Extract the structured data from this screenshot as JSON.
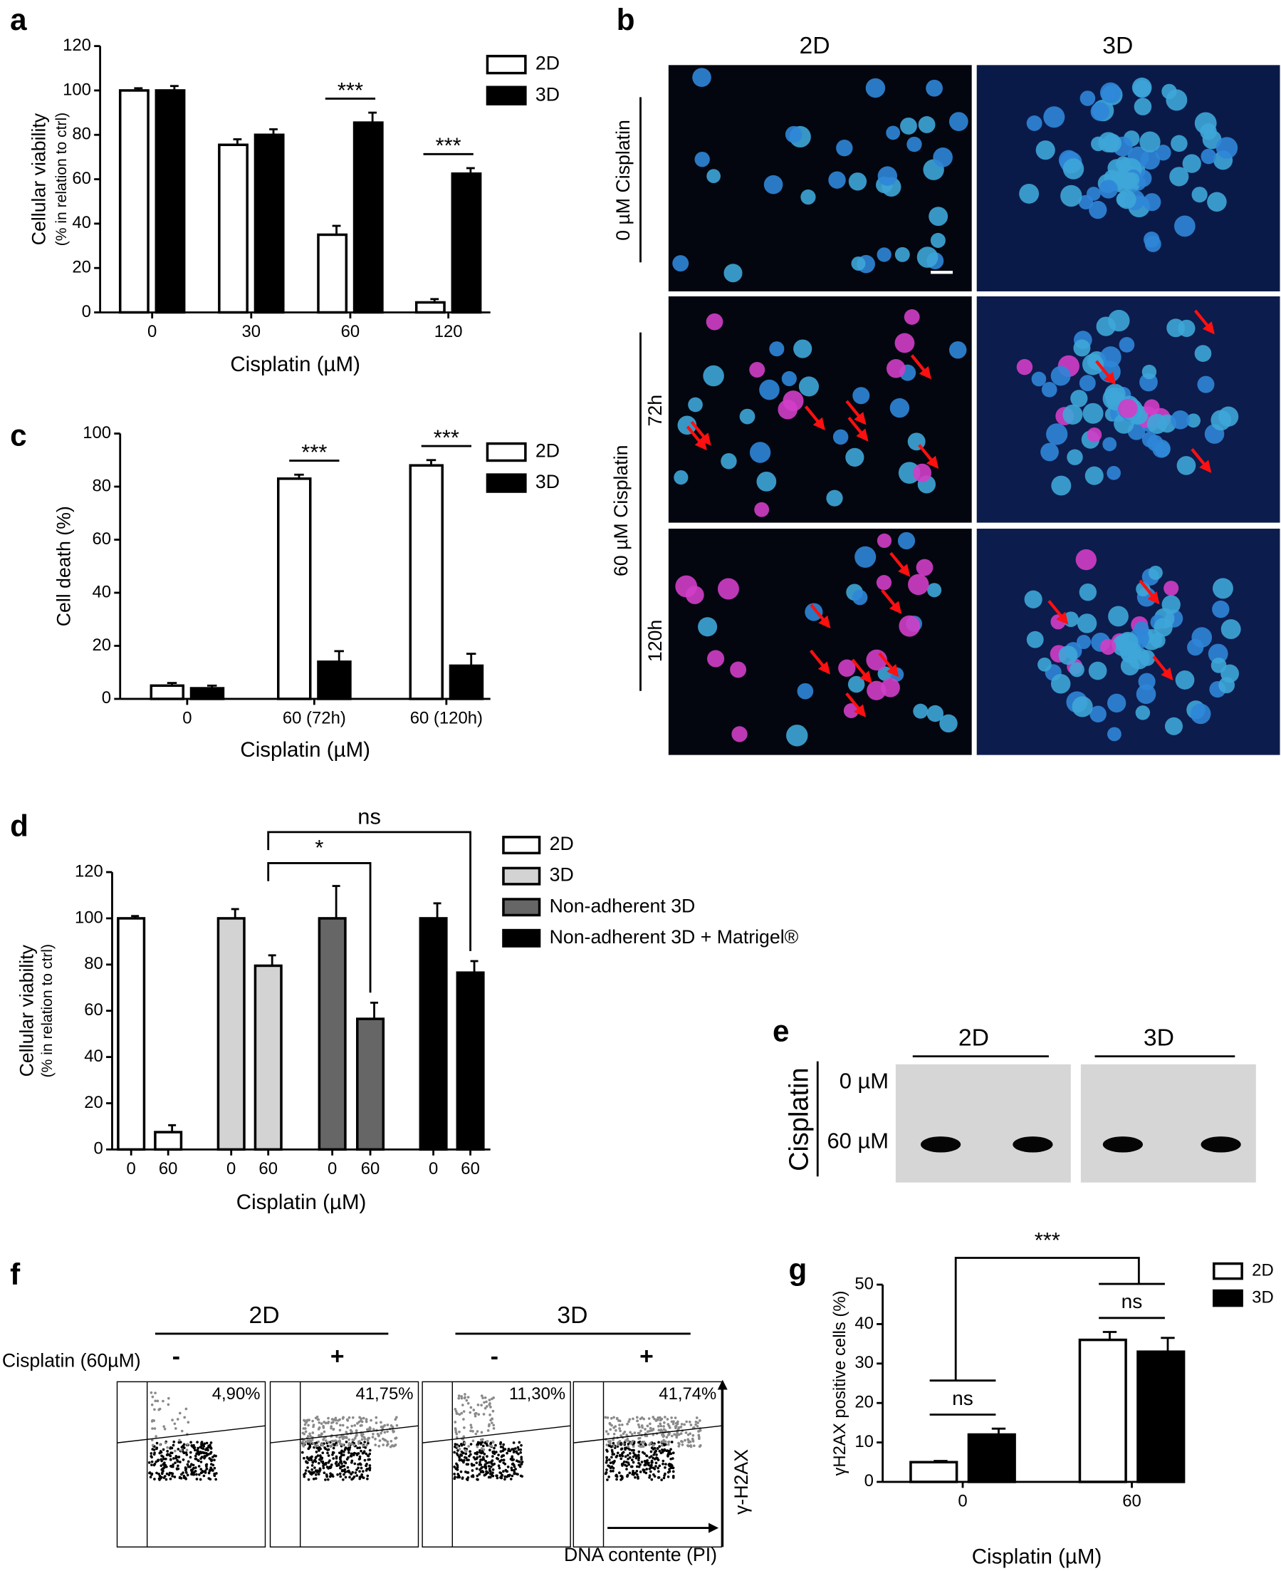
{
  "panel_labels": [
    "a",
    "b",
    "c",
    "d",
    "e",
    "f",
    "g"
  ],
  "chart_data": [
    {
      "type": "bar",
      "ylabel": "Cellular viability",
      "ylabel_note": "(% in relation to ctrl)",
      "xlabel": "Cisplatin (µM)",
      "categories": [
        "0",
        "30",
        "60",
        "120"
      ],
      "series": [
        {
          "name": "2D",
          "color": "#ffffff",
          "values": [
            100,
            75.5,
            35,
            4.5
          ],
          "errors": [
            1,
            2.5,
            4,
            1.5
          ]
        },
        {
          "name": "3D",
          "color": "#000000",
          "values": [
            100,
            80,
            85.5,
            62.5
          ],
          "errors": [
            2,
            2.5,
            4.5,
            2.5
          ]
        }
      ],
      "significance": [
        null,
        null,
        "***",
        "***"
      ],
      "ylim": [
        0,
        120
      ],
      "yticks": [
        0,
        20,
        40,
        60,
        80,
        100,
        120
      ]
    },
    {
      "type": "bar",
      "ylabel": "Cell death (%)",
      "xlabel": "Cisplatin (µM)",
      "categories": [
        "0",
        "60 (72h)",
        "60 (120h)"
      ],
      "series": [
        {
          "name": "2D",
          "color": "#ffffff",
          "values": [
            5,
            83,
            88
          ],
          "errors": [
            1,
            1.5,
            2
          ]
        },
        {
          "name": "3D",
          "color": "#000000",
          "values": [
            4,
            14,
            12.5
          ],
          "errors": [
            1,
            4,
            4.5
          ]
        }
      ],
      "significance": [
        null,
        "***",
        "***"
      ],
      "ylim": [
        0,
        100
      ],
      "yticks": [
        0,
        20,
        40,
        60,
        80,
        100
      ]
    },
    {
      "type": "bar",
      "ylabel": "Cellular viability",
      "ylabel_note": "(% in relation to ctrl)",
      "xlabel": "Cisplatin (µM)",
      "categories": [
        "0",
        "60",
        "0",
        "60",
        "0",
        "60",
        "0",
        "60"
      ],
      "series": [
        {
          "name": "2D",
          "color": "#ffffff",
          "values": [
            100,
            7.5,
            null,
            null,
            null,
            null,
            null,
            null
          ],
          "errors": [
            1,
            3,
            null,
            null,
            null,
            null,
            null,
            null
          ]
        },
        {
          "name": "3D",
          "color": "#d3d3d3",
          "values": [
            null,
            null,
            100,
            79.5,
            null,
            null,
            null,
            null
          ],
          "errors": [
            null,
            null,
            4,
            4.5,
            null,
            null,
            null,
            null
          ]
        },
        {
          "name": "Non-adherent 3D",
          "color": "#666666",
          "values": [
            null,
            null,
            null,
            null,
            100,
            56.5,
            null,
            null
          ],
          "errors": [
            null,
            null,
            null,
            null,
            14,
            7,
            null,
            null
          ]
        },
        {
          "name": "Non-adherent 3D + Matrigel®",
          "color": "#000000",
          "values": [
            null,
            null,
            null,
            null,
            null,
            null,
            100,
            76.5
          ],
          "errors": [
            null,
            null,
            null,
            null,
            null,
            null,
            6.5,
            5
          ]
        }
      ],
      "comparisons": [
        {
          "label": "*",
          "from": 3,
          "to": 5
        },
        {
          "label": "ns",
          "from": 3,
          "to": 7
        }
      ],
      "ylim": [
        0,
        120
      ],
      "yticks": [
        0,
        20,
        40,
        60,
        80,
        100,
        120
      ]
    },
    {
      "type": "bar",
      "ylabel": "γH2AX positive cells (%)",
      "xlabel": "Cisplatin (µM)",
      "categories": [
        "0",
        "60"
      ],
      "series": [
        {
          "name": "2D",
          "color": "#ffffff",
          "values": [
            5,
            36
          ],
          "errors": [
            0.3,
            2
          ]
        },
        {
          "name": "3D",
          "color": "#000000",
          "values": [
            12,
            33
          ],
          "errors": [
            1.5,
            3.5
          ]
        }
      ],
      "comparisons": [
        {
          "label": "ns",
          "from": 0,
          "to": 0
        },
        {
          "label": "ns",
          "from": 1,
          "to": 1
        },
        {
          "label": "***",
          "from": 0,
          "to": 1
        }
      ],
      "ylim": [
        0,
        50
      ],
      "yticks": [
        0,
        10,
        20,
        30,
        40,
        50
      ]
    }
  ],
  "micrographs": {
    "columns": [
      "2D",
      "3D"
    ],
    "rows": [
      "0 µM Cisplatin",
      "60 µM Cisplatin"
    ],
    "times": [
      "72h",
      "120h"
    ]
  },
  "gel": {
    "columns": [
      "2D",
      "3D"
    ],
    "side": "Cisplatin",
    "rows": [
      "0 µM",
      "60 µM"
    ]
  },
  "flow": {
    "columns": [
      "2D",
      "3D"
    ],
    "treatment": "Cisplatin (60µM)",
    "conditions": [
      "-",
      "+",
      "-",
      "+"
    ],
    "percentages": [
      "4,90%",
      "41,75%",
      "11,30%",
      "41,74%"
    ],
    "ylabel": "γ-H2AX",
    "xlabel": "DNA contente (PI)"
  }
}
